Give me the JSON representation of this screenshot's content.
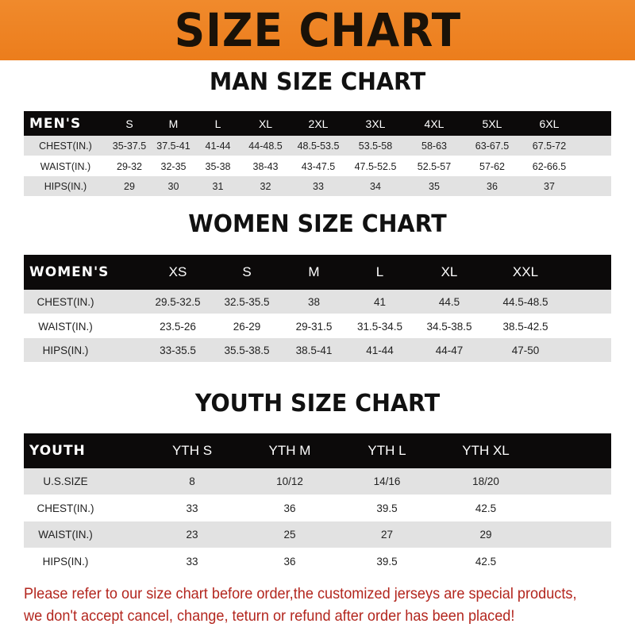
{
  "banner_title": "SIZE CHART",
  "colors": {
    "banner": "#ec7d1c",
    "header_row": "#0c0a0a",
    "stripe": "#e2e2e2",
    "note": "#b3261e"
  },
  "men": {
    "title": "MAN SIZE CHART",
    "columns": [
      "MEN'S",
      "S",
      "M",
      "L",
      "XL",
      "2XL",
      "3XL",
      "4XL",
      "5XL",
      "6XL"
    ],
    "rows": [
      [
        "CHEST(IN.)",
        "35-37.5",
        "37.5-41",
        "41-44",
        "44-48.5",
        "48.5-53.5",
        "53.5-58",
        "58-63",
        "63-67.5",
        "67.5-72"
      ],
      [
        "WAIST(IN.)",
        "29-32",
        "32-35",
        "35-38",
        "38-43",
        "43-47.5",
        "47.5-52.5",
        "52.5-57",
        "57-62",
        "62-66.5"
      ],
      [
        "HIPS(IN.)",
        "29",
        "30",
        "31",
        "32",
        "33",
        "34",
        "35",
        "36",
        "37"
      ]
    ]
  },
  "women": {
    "title": "WOMEN SIZE CHART",
    "columns": [
      "WOMEN'S",
      "XS",
      "S",
      "M",
      "L",
      "XL",
      "XXL"
    ],
    "rows": [
      [
        "CHEST(IN.)",
        "29.5-32.5",
        "32.5-35.5",
        "38",
        "41",
        "44.5",
        "44.5-48.5"
      ],
      [
        "WAIST(IN.)",
        "23.5-26",
        "26-29",
        "29-31.5",
        "31.5-34.5",
        "34.5-38.5",
        "38.5-42.5"
      ],
      [
        "HIPS(IN.)",
        "33-35.5",
        "35.5-38.5",
        "38.5-41",
        "41-44",
        "44-47",
        "47-50"
      ]
    ]
  },
  "youth": {
    "title": "YOUTH SIZE CHART",
    "columns": [
      "YOUTH",
      "YTH S",
      "YTH M",
      "YTH L",
      "YTH XL"
    ],
    "rows": [
      [
        "U.S.SIZE",
        "8",
        "10/12",
        "14/16",
        "18/20"
      ],
      [
        "CHEST(IN.)",
        "33",
        "36",
        "39.5",
        "42.5"
      ],
      [
        "WAIST(IN.)",
        "23",
        "25",
        "27",
        "29"
      ],
      [
        "HIPS(IN.)",
        "33",
        "36",
        "39.5",
        "42.5"
      ]
    ]
  },
  "note": {
    "line1": "Please refer to our size chart before order,the customized jerseys are special products,",
    "line2": "we don't accept cancel, change, teturn or refund after order has been placed!"
  }
}
